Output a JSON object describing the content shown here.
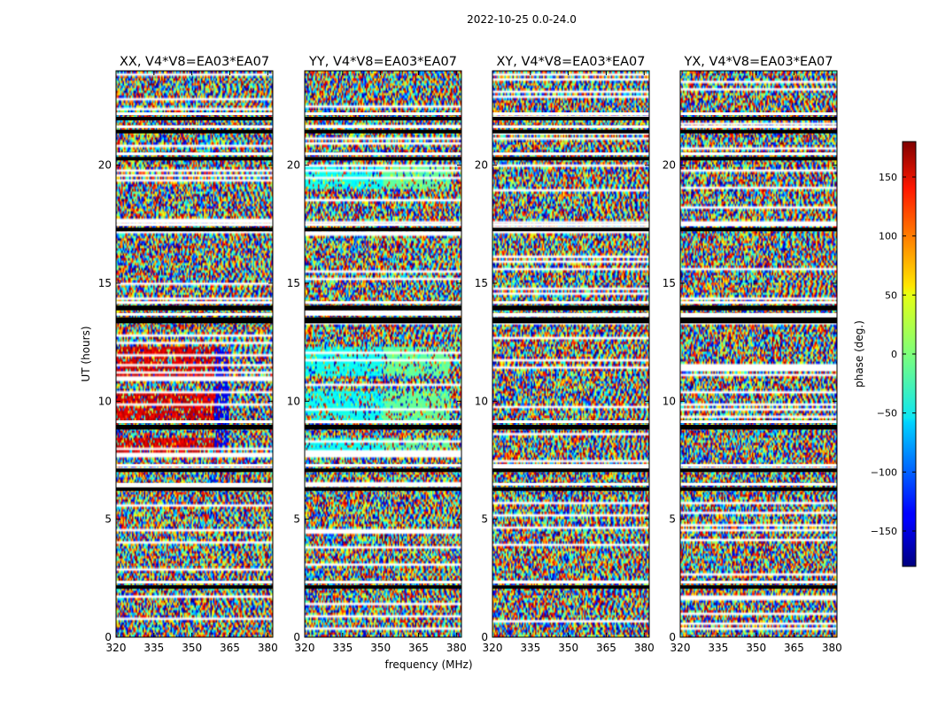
{
  "chart_data": {
    "type": "heatmap",
    "suptitle": "2022-10-25 0.0-24.0",
    "panels": [
      {
        "title": "XX, V4*V8=EA03*EA07",
        "pol": "XX"
      },
      {
        "title": "YY, V4*V8=EA03*EA07",
        "pol": "YY"
      },
      {
        "title": "XY, V4*V8=EA03*EA07",
        "pol": "XY"
      },
      {
        "title": "YX, V4*V8=EA03*EA07",
        "pol": "YX"
      }
    ],
    "xlabel": "frequency (MHz)",
    "ylabel": "UT (hours)",
    "xlim": [
      320,
      382
    ],
    "ylim": [
      0,
      24
    ],
    "xticks": [
      320,
      335,
      350,
      365,
      380
    ],
    "xtick_labels": [
      "320",
      "335",
      "350",
      "365",
      "380"
    ],
    "yticks": [
      0,
      5,
      10,
      15,
      20
    ],
    "ytick_labels": [
      "0",
      "5",
      "10",
      "15",
      "20"
    ],
    "colorbar": {
      "label": "phase (deg.)",
      "range": [
        -180,
        180
      ],
      "ticks": [
        -150,
        -100,
        -50,
        0,
        50,
        100,
        150
      ],
      "tick_labels": [
        "−150",
        "−100",
        "−50",
        "0",
        "50",
        "100",
        "150"
      ],
      "colormap": "jet"
    },
    "flagged_time_ranges_hours": [
      [
        2.05,
        2.2
      ],
      [
        6.2,
        6.35
      ],
      [
        7.0,
        7.15
      ],
      [
        8.8,
        9.0
      ],
      [
        13.3,
        13.55
      ],
      [
        13.85,
        14.05
      ],
      [
        17.2,
        17.35
      ],
      [
        20.2,
        20.35
      ],
      [
        21.35,
        21.5
      ],
      [
        21.9,
        22.05
      ]
    ]
  }
}
